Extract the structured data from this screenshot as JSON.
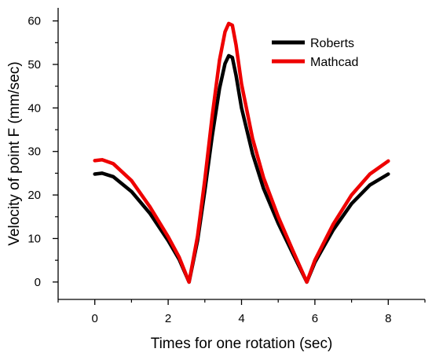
{
  "chart_data": {
    "type": "line",
    "title": "",
    "xlabel": "Times for one rotation (sec)",
    "ylabel": "Velocity of point F (mm/sec)",
    "xlim": [
      -1,
      9
    ],
    "ylim": [
      -4,
      63
    ],
    "xticks": [
      0,
      2,
      4,
      6,
      8
    ],
    "yticks": [
      0,
      10,
      20,
      30,
      40,
      50,
      60
    ],
    "grid": false,
    "legend_position": "top-right",
    "series": [
      {
        "name": "Roberts",
        "color": "#000000",
        "x": [
          0,
          0.2,
          0.5,
          1.0,
          1.5,
          2.0,
          2.3,
          2.57,
          2.8,
          3.0,
          3.2,
          3.4,
          3.55,
          3.65,
          3.75,
          3.85,
          4.0,
          4.3,
          4.6,
          5.0,
          5.4,
          5.78,
          6.0,
          6.5,
          7.0,
          7.5,
          8.0
        ],
        "y": [
          24.8,
          25.0,
          24.2,
          20.8,
          15.8,
          9.5,
          5.2,
          0.0,
          9.5,
          21.0,
          33.5,
          44.5,
          50.2,
          52.0,
          51.6,
          47.5,
          40.0,
          29.5,
          21.5,
          13.5,
          6.5,
          0.0,
          4.5,
          12.0,
          18.0,
          22.3,
          24.8
        ]
      },
      {
        "name": "Mathcad",
        "color": "#ee0000",
        "x": [
          0,
          0.2,
          0.5,
          1.0,
          1.5,
          2.0,
          2.3,
          2.57,
          2.8,
          3.0,
          3.2,
          3.4,
          3.55,
          3.65,
          3.75,
          3.85,
          4.0,
          4.3,
          4.6,
          5.0,
          5.4,
          5.78,
          6.0,
          6.5,
          7.0,
          7.5,
          8.0
        ],
        "y": [
          27.9,
          28.1,
          27.2,
          23.3,
          17.3,
          10.4,
          5.7,
          0.0,
          10.5,
          23.5,
          38.0,
          51.0,
          57.5,
          59.4,
          59.0,
          54.5,
          45.5,
          33.0,
          24.0,
          15.0,
          7.2,
          0.0,
          5.0,
          13.3,
          20.0,
          24.8,
          27.8
        ]
      }
    ]
  }
}
